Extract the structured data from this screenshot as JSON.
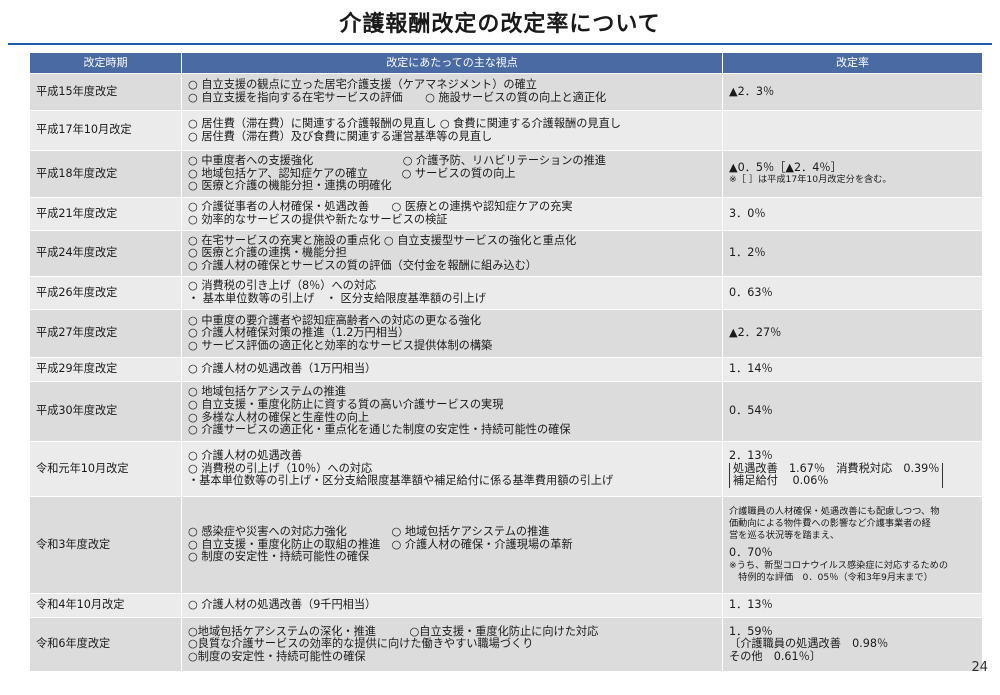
{
  "title": "介護報酬改定の改定率について",
  "page_number": "24",
  "header": {
    "col_period": "改定時期",
    "col_points": "改定にあたっての主な視点",
    "col_rate": "改定率"
  },
  "rows": [
    {
      "period": "平成15年度改定",
      "points": [
        "○ 自立支援の観点に立った居宅介護支援（ケアマネジメント）の確立",
        "○ 自立支援を指向する在宅サービスの評価　　○ 施設サービスの質の向上と適正化"
      ],
      "rate": [
        "▲2．3％"
      ]
    },
    {
      "period": "平成17年10月改定",
      "points": [
        "○ 居住費（滞在費）に関連する介護報酬の見直し ○ 食費に関連する介護報酬の見直し",
        "○ 居住費（滞在費）及び食費に関連する運営基準等の見直し"
      ],
      "rate": []
    },
    {
      "period": "平成18年度改定",
      "points": [
        "○ 中重度者への支援強化　　　　　　　　○ 介護予防、リハビリテーションの推進",
        "○ 地域包括ケア、認知症ケアの確立　　　○ サービスの質の向上",
        "○ 医療と介護の機能分担・連携の明確化"
      ],
      "rate": [
        "▲0．5％［▲2．4％］",
        "※［ ］は平成17年10月改定分を含む。"
      ]
    },
    {
      "period": "平成21年度改定",
      "points": [
        "○ 介護従事者の人材確保・処遇改善　　○ 医療との連携や認知症ケアの充実",
        "○ 効率的なサービスの提供や新たなサービスの検証"
      ],
      "rate": [
        "3．0％"
      ]
    },
    {
      "period": "平成24年度改定",
      "points": [
        "○ 在宅サービスの充実と施設の重点化 ○ 自立支援型サービスの強化と重点化",
        "○ 医療と介護の連携・機能分担",
        "○ 介護人材の確保とサービスの質の評価（交付金を報酬に組み込む）"
      ],
      "rate": [
        "1．2％"
      ]
    },
    {
      "period": "平成26年度改定",
      "points": [
        "○ 消費税の引き上げ（8％）への対応",
        "・ 基本単位数等の引上げ　・ 区分支給限度基準額の引上げ"
      ],
      "rate": [
        "0．63％"
      ]
    },
    {
      "period": "平成27年度改定",
      "points": [
        "○ 中重度の要介護者や認知症高齢者への対応の更なる強化",
        "○ 介護人材確保対策の推進（1.2万円相当）",
        "○ サービス評価の適正化と効率的なサービス提供体制の構築"
      ],
      "rate": [
        "▲2．27％"
      ]
    },
    {
      "period": "平成29年度改定",
      "points": [
        "○ 介護人材の処遇改善（1万円相当）"
      ],
      "rate": [
        "1．14％"
      ]
    },
    {
      "period": "平成30年度改定",
      "points": [
        "○ 地域包括ケアシステムの推進",
        "○ 自立支援・重度化防止に資する質の高い介護サービスの実現",
        "○ 多様な人材の確保と生産性の向上",
        "○ 介護サービスの適正化・重点化を通じた制度の安定性・持続可能性の確保"
      ],
      "rate": [
        "0．54％"
      ]
    },
    {
      "period": "令和元年10月改定",
      "points": [
        "○ 介護人材の処遇改善",
        "○ 消費税の引上げ（10％）への対応",
        "・基本単位数等の引上げ・区分支給限度基準額や補足給付に係る基準費用額の引上げ"
      ],
      "rate": [
        "2．13％",
        "処遇改善　1.67％　消費税対応　0.39％",
        "補足給付　 0.06％"
      ]
    },
    {
      "period": "令和3年度改定",
      "points": [
        "○ 感染症や災害への対応力強化　　　　○ 地域包括ケアシステムの推進",
        "○ 自立支援・重度化防止の取組の推進　○ 介護人材の確保・介護現場の革新",
        "○ 制度の安定性・持続可能性の確保"
      ],
      "rate": [
        "介護職員の人材確保・処遇改善にも配慮しつつ、物",
        "価動向による物件費への影響など介護事業者の経",
        "営を巡る状況等を踏まえ、",
        "0．70％",
        "※うち、新型コロナウイルス感染症に対応するための",
        "　特例的な評価　0．05％（令和3年9月末まで）"
      ]
    },
    {
      "period": "令和4年10月改定",
      "points": [
        "○ 介護人材の処遇改善（9千円相当）"
      ],
      "rate": [
        "1．13％"
      ]
    },
    {
      "period": "令和6年度改定",
      "points": [
        "○地域包括ケアシステムの深化・推進　　　○自立支援・重度化防止に向けた対応",
        "○良質な介護サービスの効率的な提供に向けた働きやすい職場づくり",
        "○制度の安定性・持続可能性の確保"
      ],
      "rate": [
        "1．59％",
        "〔介護職員の処遇改善　0.98％",
        "その他　0.61％〕"
      ]
    }
  ]
}
